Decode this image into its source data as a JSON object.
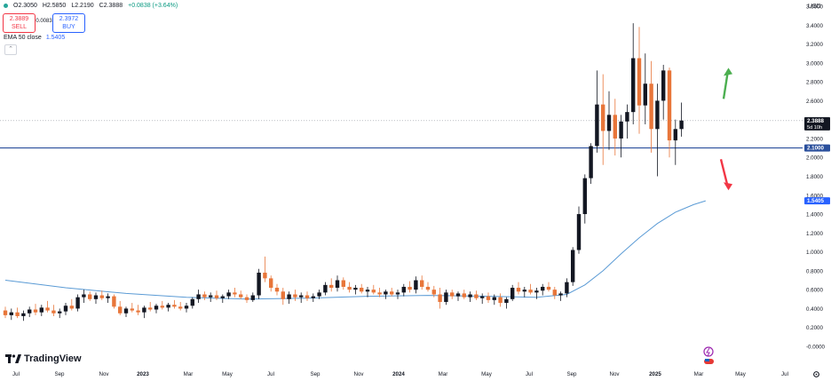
{
  "legend": {
    "open": "O2.3050",
    "high": "H2.5850",
    "low": "L2.2190",
    "close": "C2.3888",
    "change": "+0.0838 (+3.64%)"
  },
  "trade": {
    "sell_price": "2.3889",
    "sell_label": "SELL",
    "spread": "0.0083",
    "buy_price": "2.3972",
    "buy_label": "BUY"
  },
  "indicator": {
    "label": "EMA 50 close",
    "value": "1.5405"
  },
  "currency": "USD",
  "brand": "TradingView",
  "colors": {
    "up": "#089981",
    "down": "#f23645",
    "candle_up": "#131722",
    "candle_down": "#e8763a",
    "ema": "#5b9bd5",
    "hline": "#2a4f9c",
    "axis_text": "#131722",
    "arrow_up": "#4caf50",
    "arrow_down": "#f23645"
  },
  "price_axis": [
    "3.6000",
    "3.4000",
    "3.2000",
    "3.0000",
    "2.8000",
    "2.6000",
    "2.4000",
    "2.2000",
    "2.0000",
    "1.8000",
    "1.6000",
    "1.4000",
    "1.2000",
    "1.0000",
    "0.8000",
    "0.6000",
    "0.4000",
    "0.2000",
    "-0.0000"
  ],
  "time_axis": [
    "Jul",
    "Sep",
    "Nov",
    "2023",
    "Mar",
    "May",
    "Jul",
    "Sep",
    "Nov",
    "2024",
    "Mar",
    "May",
    "Jul",
    "Sep",
    "Nov",
    "2025",
    "Mar",
    "May",
    "Jul"
  ],
  "price_badges": {
    "current": "2.3888",
    "countdown": "5d 10h",
    "level": "2.1000",
    "ema": "1.5405"
  },
  "chart_data": {
    "type": "candlestick",
    "yrange": [
      -0.05,
      3.65
    ],
    "horizontal_line": 2.1,
    "current_price": 2.3888,
    "candles": [
      [
        0.38,
        0.42,
        0.3,
        0.33
      ],
      [
        0.33,
        0.4,
        0.28,
        0.36
      ],
      [
        0.36,
        0.41,
        0.3,
        0.32
      ],
      [
        0.32,
        0.38,
        0.27,
        0.35
      ],
      [
        0.35,
        0.42,
        0.31,
        0.39
      ],
      [
        0.39,
        0.45,
        0.33,
        0.36
      ],
      [
        0.36,
        0.44,
        0.32,
        0.41
      ],
      [
        0.41,
        0.48,
        0.36,
        0.38
      ],
      [
        0.38,
        0.44,
        0.32,
        0.35
      ],
      [
        0.35,
        0.4,
        0.3,
        0.37
      ],
      [
        0.37,
        0.46,
        0.33,
        0.43
      ],
      [
        0.43,
        0.5,
        0.38,
        0.4
      ],
      [
        0.4,
        0.55,
        0.37,
        0.52
      ],
      [
        0.52,
        0.6,
        0.46,
        0.55
      ],
      [
        0.55,
        0.58,
        0.48,
        0.5
      ],
      [
        0.5,
        0.57,
        0.45,
        0.54
      ],
      [
        0.54,
        0.59,
        0.49,
        0.51
      ],
      [
        0.51,
        0.56,
        0.46,
        0.53
      ],
      [
        0.53,
        0.55,
        0.4,
        0.42
      ],
      [
        0.42,
        0.48,
        0.33,
        0.35
      ],
      [
        0.35,
        0.42,
        0.31,
        0.4
      ],
      [
        0.4,
        0.46,
        0.36,
        0.38
      ],
      [
        0.38,
        0.44,
        0.33,
        0.36
      ],
      [
        0.36,
        0.43,
        0.3,
        0.41
      ],
      [
        0.41,
        0.47,
        0.37,
        0.39
      ],
      [
        0.39,
        0.45,
        0.35,
        0.43
      ],
      [
        0.43,
        0.48,
        0.39,
        0.41
      ],
      [
        0.41,
        0.46,
        0.37,
        0.44
      ],
      [
        0.44,
        0.49,
        0.4,
        0.42
      ],
      [
        0.42,
        0.47,
        0.38,
        0.4
      ],
      [
        0.4,
        0.46,
        0.36,
        0.43
      ],
      [
        0.43,
        0.52,
        0.4,
        0.5
      ],
      [
        0.5,
        0.6,
        0.46,
        0.55
      ],
      [
        0.55,
        0.58,
        0.49,
        0.52
      ],
      [
        0.52,
        0.57,
        0.47,
        0.54
      ],
      [
        0.54,
        0.59,
        0.49,
        0.51
      ],
      [
        0.51,
        0.55,
        0.46,
        0.53
      ],
      [
        0.53,
        0.6,
        0.5,
        0.57
      ],
      [
        0.57,
        0.62,
        0.52,
        0.55
      ],
      [
        0.55,
        0.59,
        0.5,
        0.52
      ],
      [
        0.52,
        0.55,
        0.46,
        0.49
      ],
      [
        0.49,
        0.57,
        0.47,
        0.54
      ],
      [
        0.54,
        0.82,
        0.5,
        0.78
      ],
      [
        0.78,
        0.95,
        0.68,
        0.72
      ],
      [
        0.72,
        0.75,
        0.58,
        0.62
      ],
      [
        0.62,
        0.66,
        0.54,
        0.58
      ],
      [
        0.58,
        0.62,
        0.44,
        0.5
      ],
      [
        0.5,
        0.58,
        0.45,
        0.55
      ],
      [
        0.55,
        0.6,
        0.48,
        0.52
      ],
      [
        0.52,
        0.57,
        0.46,
        0.54
      ],
      [
        0.54,
        0.58,
        0.48,
        0.51
      ],
      [
        0.51,
        0.56,
        0.47,
        0.53
      ],
      [
        0.53,
        0.6,
        0.5,
        0.57
      ],
      [
        0.57,
        0.68,
        0.54,
        0.65
      ],
      [
        0.65,
        0.72,
        0.58,
        0.62
      ],
      [
        0.62,
        0.75,
        0.58,
        0.7
      ],
      [
        0.7,
        0.73,
        0.6,
        0.63
      ],
      [
        0.63,
        0.68,
        0.57,
        0.6
      ],
      [
        0.6,
        0.65,
        0.55,
        0.62
      ],
      [
        0.62,
        0.66,
        0.56,
        0.58
      ],
      [
        0.58,
        0.63,
        0.52,
        0.6
      ],
      [
        0.6,
        0.65,
        0.55,
        0.57
      ],
      [
        0.57,
        0.62,
        0.52,
        0.55
      ],
      [
        0.55,
        0.6,
        0.5,
        0.58
      ],
      [
        0.58,
        0.62,
        0.53,
        0.55
      ],
      [
        0.55,
        0.6,
        0.5,
        0.57
      ],
      [
        0.57,
        0.66,
        0.53,
        0.63
      ],
      [
        0.63,
        0.69,
        0.57,
        0.6
      ],
      [
        0.6,
        0.74,
        0.56,
        0.7
      ],
      [
        0.7,
        0.75,
        0.6,
        0.63
      ],
      [
        0.63,
        0.68,
        0.58,
        0.6
      ],
      [
        0.6,
        0.64,
        0.52,
        0.55
      ],
      [
        0.55,
        0.62,
        0.4,
        0.47
      ],
      [
        0.47,
        0.6,
        0.44,
        0.57
      ],
      [
        0.57,
        0.6,
        0.5,
        0.53
      ],
      [
        0.53,
        0.58,
        0.48,
        0.56
      ],
      [
        0.56,
        0.6,
        0.5,
        0.52
      ],
      [
        0.52,
        0.58,
        0.47,
        0.55
      ],
      [
        0.55,
        0.59,
        0.49,
        0.51
      ],
      [
        0.51,
        0.56,
        0.45,
        0.53
      ],
      [
        0.53,
        0.57,
        0.46,
        0.49
      ],
      [
        0.49,
        0.55,
        0.44,
        0.52
      ],
      [
        0.52,
        0.56,
        0.42,
        0.46
      ],
      [
        0.46,
        0.52,
        0.4,
        0.5
      ],
      [
        0.5,
        0.65,
        0.48,
        0.62
      ],
      [
        0.62,
        0.68,
        0.55,
        0.58
      ],
      [
        0.58,
        0.63,
        0.52,
        0.6
      ],
      [
        0.6,
        0.66,
        0.55,
        0.57
      ],
      [
        0.57,
        0.62,
        0.5,
        0.59
      ],
      [
        0.59,
        0.66,
        0.54,
        0.63
      ],
      [
        0.63,
        0.68,
        0.58,
        0.6
      ],
      [
        0.6,
        0.63,
        0.5,
        0.54
      ],
      [
        0.54,
        0.58,
        0.48,
        0.56
      ],
      [
        0.56,
        0.72,
        0.52,
        0.68
      ],
      [
        0.68,
        1.05,
        0.64,
        1.02
      ],
      [
        1.02,
        1.48,
        0.98,
        1.4
      ],
      [
        1.4,
        1.82,
        1.3,
        1.78
      ],
      [
        1.78,
        2.15,
        1.72,
        2.12
      ],
      [
        2.12,
        2.92,
        2.05,
        2.56
      ],
      [
        2.56,
        2.88,
        1.92,
        2.28
      ],
      [
        2.28,
        2.7,
        2.08,
        2.45
      ],
      [
        2.45,
        2.62,
        2.02,
        2.2
      ],
      [
        2.2,
        2.45,
        2.0,
        2.38
      ],
      [
        2.38,
        2.56,
        2.2,
        2.48
      ],
      [
        2.48,
        3.42,
        2.35,
        3.05
      ],
      [
        3.05,
        3.38,
        2.25,
        2.55
      ],
      [
        2.55,
        3.1,
        2.35,
        2.78
      ],
      [
        2.78,
        3.02,
        2.05,
        2.3
      ],
      [
        2.3,
        2.78,
        1.8,
        2.6
      ],
      [
        2.6,
        2.98,
        2.4,
        2.92
      ],
      [
        2.92,
        2.95,
        2.0,
        2.18
      ],
      [
        2.18,
        2.4,
        1.92,
        2.3
      ],
      [
        2.3,
        2.58,
        2.22,
        2.39
      ]
    ],
    "ema50_values": [
      [
        0,
        0.7
      ],
      [
        10,
        0.62
      ],
      [
        20,
        0.56
      ],
      [
        30,
        0.52
      ],
      [
        40,
        0.5
      ],
      [
        50,
        0.51
      ],
      [
        60,
        0.53
      ],
      [
        70,
        0.54
      ],
      [
        80,
        0.53
      ],
      [
        88,
        0.52
      ],
      [
        93,
        0.55
      ],
      [
        96,
        0.65
      ],
      [
        99,
        0.8
      ],
      [
        102,
        0.98
      ],
      [
        105,
        1.15
      ],
      [
        108,
        1.3
      ],
      [
        111,
        1.42
      ],
      [
        114,
        1.5
      ],
      [
        116,
        1.5405
      ]
    ],
    "arrows": [
      {
        "direction": "up",
        "from": 2.62,
        "to": 2.92
      },
      {
        "direction": "down",
        "from": 1.98,
        "to": 1.68
      }
    ]
  }
}
